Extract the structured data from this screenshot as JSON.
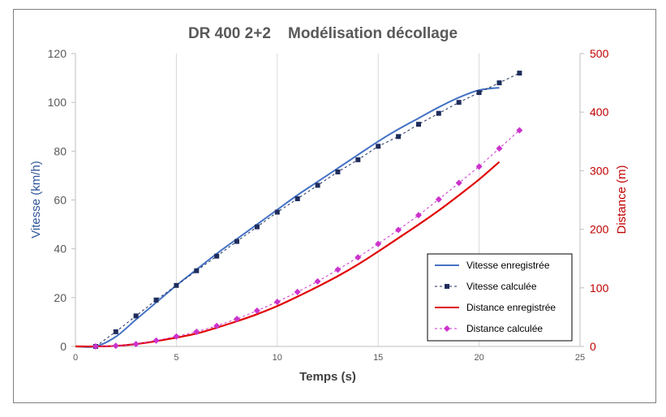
{
  "chart_data": {
    "type": "line",
    "title": "DR 400 2+2    Modélisation décollage",
    "xlabel": "Temps (s)",
    "ylabel_left": "Vitesse (km/h)",
    "ylabel_right": "Distance (m)",
    "xlim": [
      0,
      25
    ],
    "xticks": [
      0,
      5,
      10,
      15,
      20,
      25
    ],
    "ylim_left": [
      0,
      120
    ],
    "yticks_left": [
      0,
      20,
      40,
      60,
      80,
      100,
      120
    ],
    "ylim_right": [
      0,
      500
    ],
    "yticks_right": [
      0,
      100,
      200,
      300,
      400,
      500
    ],
    "grid": "vertical",
    "legend_position": "bottom-right",
    "colors": {
      "vitesse_enregistree": "#4472c4",
      "vitesse_calculee": "#1f2d5c",
      "distance_enregistree": "#e00000",
      "distance_calculee": "#cc33cc",
      "axis_left": "#2f5597",
      "axis_right": "#c00000"
    },
    "series": [
      {
        "name": "Vitesse enregistrée",
        "axis": "left",
        "style": "solid",
        "x": [
          0,
          1,
          2,
          3,
          4,
          5,
          6,
          7,
          8,
          9,
          10,
          11,
          12,
          13,
          14,
          15,
          16,
          17,
          18,
          19,
          20,
          21
        ],
        "y": [
          0,
          0,
          4,
          11,
          18,
          25,
          31.5,
          38,
          44,
          50,
          56,
          62,
          67.5,
          73,
          78.5,
          84,
          89,
          93.5,
          98,
          102,
          105,
          106
        ]
      },
      {
        "name": "Vitesse calculée",
        "axis": "left",
        "style": "dashed-square",
        "x": [
          1,
          2,
          3,
          4,
          5,
          6,
          7,
          8,
          9,
          10,
          11,
          12,
          13,
          14,
          15,
          16,
          17,
          18,
          19,
          20,
          21,
          22
        ],
        "y": [
          0,
          6,
          12.5,
          19,
          25,
          31,
          37,
          43,
          49,
          55,
          60.5,
          66,
          71.5,
          76.5,
          82,
          86,
          91,
          95.5,
          100,
          104,
          108,
          112
        ]
      },
      {
        "name": "Distance enregistrée",
        "axis": "right",
        "style": "solid",
        "x": [
          0,
          1,
          2,
          3,
          4,
          5,
          6,
          7,
          8,
          9,
          10,
          11,
          12,
          13,
          14,
          15,
          16,
          17,
          18,
          19,
          20,
          21
        ],
        "y": [
          0,
          0,
          1,
          4,
          9,
          15,
          22,
          32,
          43,
          55,
          69,
          85,
          102,
          120,
          140,
          162,
          185,
          208,
          232,
          258,
          285,
          315
        ]
      },
      {
        "name": "Distance calculée",
        "axis": "right",
        "style": "dashed-diamond",
        "x": [
          1,
          2,
          3,
          4,
          5,
          6,
          7,
          8,
          9,
          10,
          11,
          12,
          13,
          14,
          15,
          16,
          17,
          18,
          19,
          20,
          21,
          22
        ],
        "y": [
          0,
          1,
          4,
          10,
          17,
          25,
          35,
          47,
          61,
          76,
          93,
          111,
          131,
          152,
          175,
          199,
          224,
          251,
          279,
          307,
          338,
          369
        ]
      }
    ]
  }
}
